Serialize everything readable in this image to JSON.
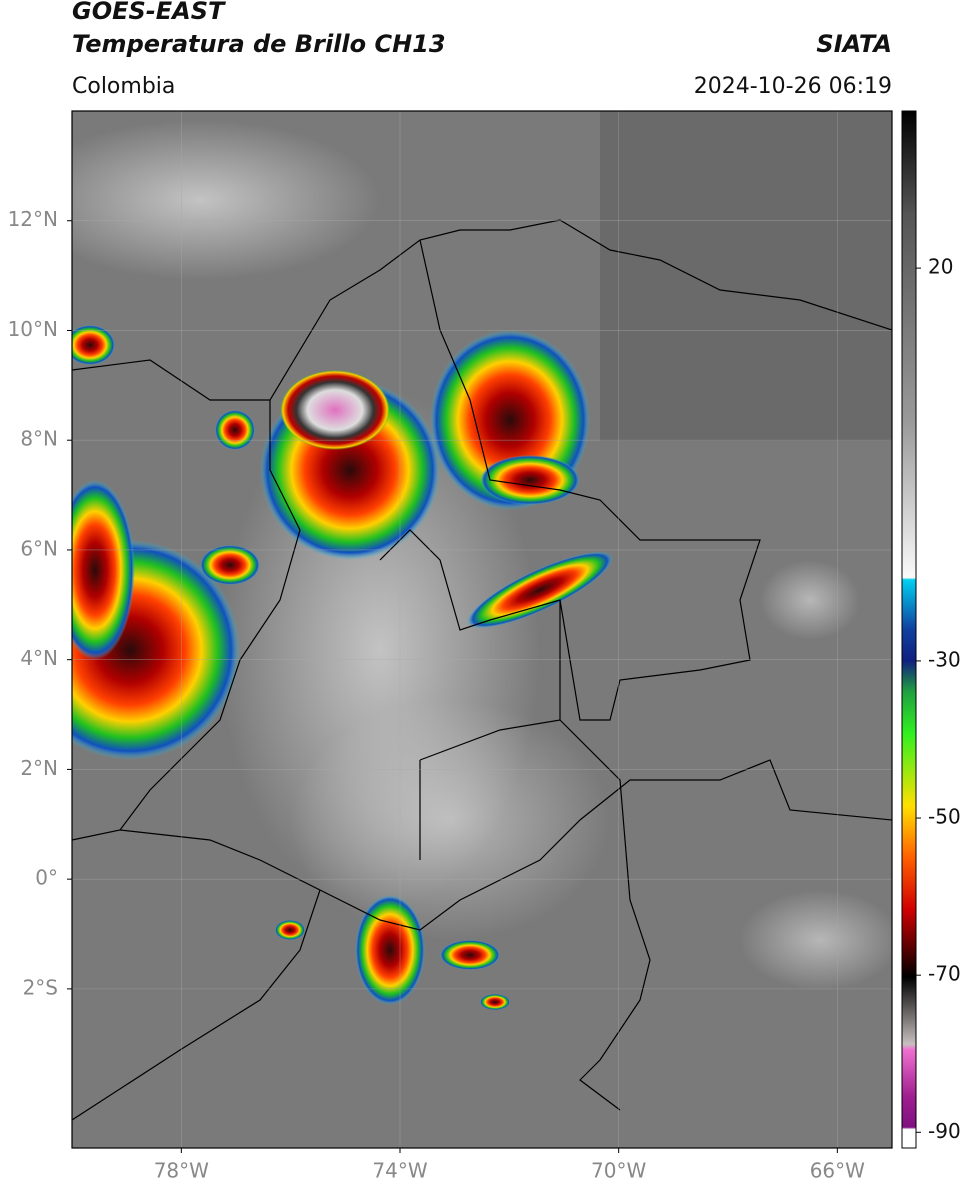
{
  "header": {
    "title_line1": "GOES-EAST",
    "title_line2": "Temperatura de Brillo CH13",
    "source": "SIATA",
    "region": "Colombia",
    "timestamp": "2024-10-26 06:19"
  },
  "map": {
    "xlim": [
      -80,
      -65
    ],
    "ylim": [
      -4.9,
      14
    ],
    "xticks": [
      {
        "value": -78,
        "label": "78°W"
      },
      {
        "value": -74,
        "label": "74°W"
      },
      {
        "value": -70,
        "label": "70°W"
      },
      {
        "value": -66,
        "label": "66°W"
      }
    ],
    "yticks": [
      {
        "value": 12,
        "label": "12°N"
      },
      {
        "value": 10,
        "label": "10°N"
      },
      {
        "value": 8,
        "label": "8°N"
      },
      {
        "value": 6,
        "label": "6°N"
      },
      {
        "value": 4,
        "label": "4°N"
      },
      {
        "value": 2,
        "label": "2°N"
      },
      {
        "value": 0,
        "label": "0°"
      },
      {
        "value": -2,
        "label": "2°S"
      }
    ],
    "grid": true
  },
  "colorbar": {
    "lim": [
      -92,
      40
    ],
    "ticks": [
      20,
      -30,
      -50,
      -70,
      -90
    ]
  }
}
